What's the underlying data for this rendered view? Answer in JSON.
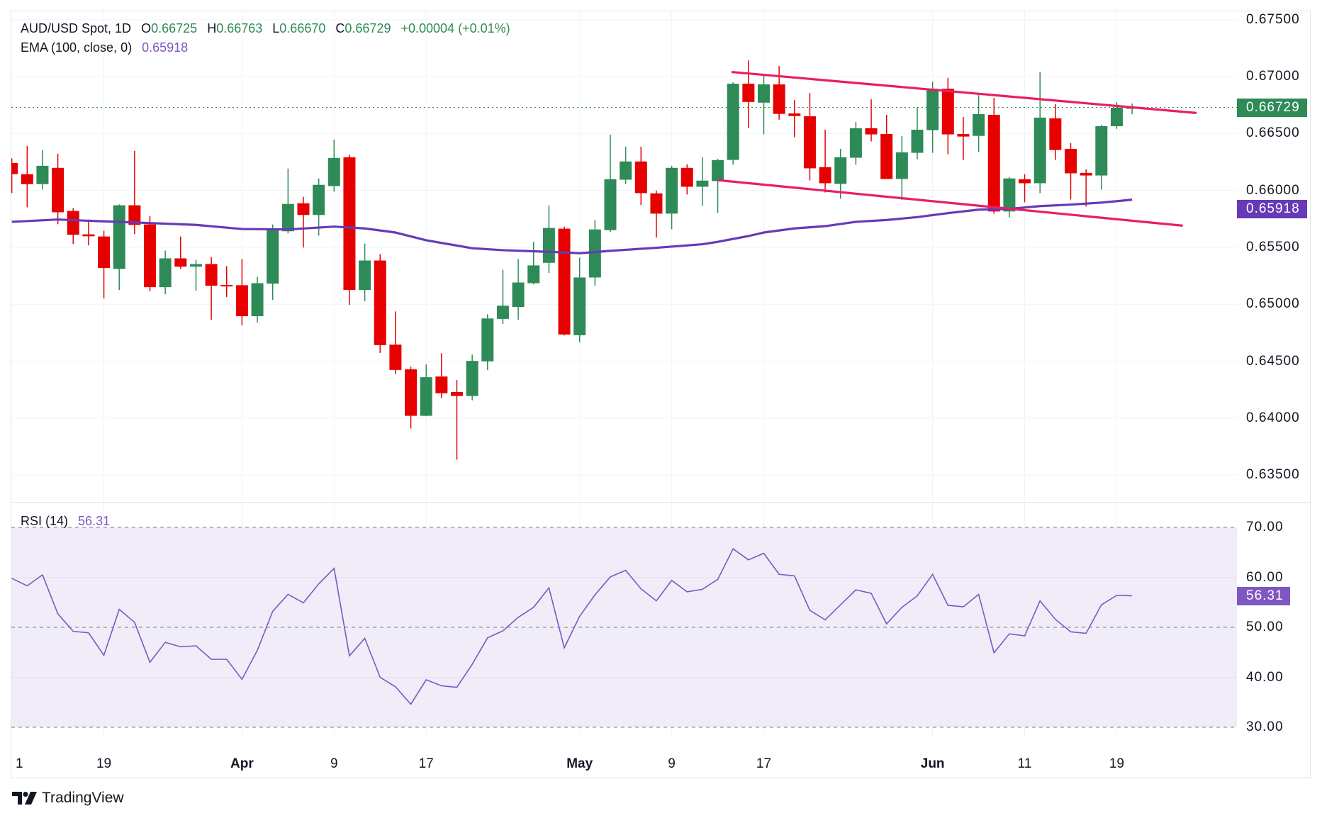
{
  "header": {
    "symbol": "AUD/USD Spot, 1D",
    "open_label": "O",
    "open": "0.66725",
    "high_label": "H",
    "high": "0.66763",
    "low_label": "L",
    "low": "0.66670",
    "close_label": "C",
    "close": "0.66729",
    "change": "+0.00004 (+0.01%)",
    "ema_label": "EMA (100, close, 0)",
    "ema_value": "0.65918"
  },
  "rsi_header": {
    "label": "RSI (14)",
    "value": "56.31"
  },
  "price_tag": "0.66729",
  "ema_tag": "0.65918",
  "rsi_tag": "56.31",
  "brand": "TradingView",
  "colors": {
    "up": "#2e8b57",
    "down": "#e60000",
    "ema": "#673ab7",
    "trend": "#e91e63",
    "rsi": "#7e57c2",
    "rsi_fill": "#f0ecf8",
    "grid": "#f0f3fa"
  },
  "chart_data": [
    {
      "type": "candlestick",
      "title": "AUD/USD Spot, 1D",
      "price_axis_labels": [
        "0.67500",
        "0.67000",
        "0.66500",
        "0.66000",
        "0.65500",
        "0.65000",
        "0.64500",
        "0.64000",
        "0.63500"
      ],
      "ylim": [
        0.6335,
        0.676
      ],
      "time_labels": [
        {
          "bar": 0,
          "label": "1",
          "bold": false
        },
        {
          "bar": 6,
          "label": "19",
          "bold": false
        },
        {
          "bar": 15,
          "label": "Apr",
          "bold": true
        },
        {
          "bar": 21,
          "label": "9",
          "bold": false
        },
        {
          "bar": 27,
          "label": "17",
          "bold": false
        },
        {
          "bar": 37,
          "label": "May",
          "bold": true
        },
        {
          "bar": 43,
          "label": "9",
          "bold": false
        },
        {
          "bar": 49,
          "label": "17",
          "bold": false
        },
        {
          "bar": 60,
          "label": "Jun",
          "bold": true
        },
        {
          "bar": 66,
          "label": "11",
          "bold": false
        },
        {
          "bar": 72,
          "label": "19",
          "bold": false
        }
      ],
      "ohlc": [
        [
          0.66241,
          0.66282,
          0.65976,
          0.66143
        ],
        [
          0.66142,
          0.6639,
          0.65852,
          0.66055
        ],
        [
          0.66055,
          0.66353,
          0.66007,
          0.66216
        ],
        [
          0.66198,
          0.66322,
          0.65703,
          0.65808
        ],
        [
          0.65819,
          0.65844,
          0.65529,
          0.6561
        ],
        [
          0.65614,
          0.65744,
          0.65517,
          0.65597
        ],
        [
          0.65595,
          0.65645,
          0.65051,
          0.65318
        ],
        [
          0.6531,
          0.65877,
          0.65125,
          0.65869
        ],
        [
          0.65869,
          0.66347,
          0.65616,
          0.65697
        ],
        [
          0.65701,
          0.65775,
          0.65113,
          0.6515
        ],
        [
          0.6515,
          0.65471,
          0.65088,
          0.65403
        ],
        [
          0.65403,
          0.65595,
          0.6531,
          0.6533
        ],
        [
          0.6533,
          0.6539,
          0.65119,
          0.65353
        ],
        [
          0.65353,
          0.65415,
          0.64864,
          0.65163
        ],
        [
          0.65169,
          0.65334,
          0.65063,
          0.65163
        ],
        [
          0.65167,
          0.65397,
          0.64815,
          0.64895
        ],
        [
          0.64895,
          0.65241,
          0.6484,
          0.65185
        ],
        [
          0.65181,
          0.65701,
          0.65038,
          0.65651
        ],
        [
          0.65641,
          0.66192,
          0.65622,
          0.65881
        ],
        [
          0.65887,
          0.65943,
          0.65498,
          0.65784
        ],
        [
          0.65784,
          0.66105,
          0.65603,
          0.66049
        ],
        [
          0.66038,
          0.66446,
          0.65989,
          0.66285
        ],
        [
          0.66291,
          0.66316,
          0.64995,
          0.65125
        ],
        [
          0.65125,
          0.65533,
          0.65026,
          0.65384
        ],
        [
          0.65384,
          0.6544,
          0.64572,
          0.64641
        ],
        [
          0.64645,
          0.64937,
          0.64386,
          0.64423
        ],
        [
          0.64428,
          0.64452,
          0.63908,
          0.6402
        ],
        [
          0.6402,
          0.64471,
          0.64016,
          0.64359
        ],
        [
          0.64365,
          0.6457,
          0.64175,
          0.64218
        ],
        [
          0.64229,
          0.64334,
          0.63635,
          0.64194
        ],
        [
          0.64194,
          0.64558,
          0.64156,
          0.64502
        ],
        [
          0.64498,
          0.64912,
          0.64423,
          0.64875
        ],
        [
          0.64871,
          0.65303,
          0.64827,
          0.64987
        ],
        [
          0.64976,
          0.65397,
          0.64864,
          0.65191
        ],
        [
          0.65185,
          0.65546,
          0.65175,
          0.65341
        ],
        [
          0.65364,
          0.65869,
          0.65274,
          0.6567
        ],
        [
          0.65664,
          0.65682,
          0.64726,
          0.64734
        ],
        [
          0.64728,
          0.65409,
          0.64666,
          0.65235
        ],
        [
          0.65235,
          0.65738,
          0.65163,
          0.65657
        ],
        [
          0.65651,
          0.6649,
          0.65635,
          0.66098
        ],
        [
          0.66094,
          0.66384,
          0.66057,
          0.66254
        ],
        [
          0.66254,
          0.66384,
          0.65871,
          0.65976
        ],
        [
          0.65974,
          0.65999,
          0.65585,
          0.65796
        ],
        [
          0.65796,
          0.66216,
          0.65659,
          0.66198
        ],
        [
          0.66198,
          0.66229,
          0.65964,
          0.66032
        ],
        [
          0.66032,
          0.66291,
          0.65864,
          0.66086
        ],
        [
          0.66082,
          0.66278,
          0.65802,
          0.66266
        ],
        [
          0.66268,
          0.66949,
          0.66225,
          0.66937
        ],
        [
          0.66937,
          0.67142,
          0.66548,
          0.66777
        ],
        [
          0.66771,
          0.67018,
          0.66492,
          0.66931
        ],
        [
          0.66931,
          0.67092,
          0.66622,
          0.66672
        ],
        [
          0.66676,
          0.66794,
          0.66467,
          0.66653
        ],
        [
          0.66651,
          0.66856,
          0.66088,
          0.66194
        ],
        [
          0.66204,
          0.66533,
          0.65982,
          0.66063
        ],
        [
          0.66057,
          0.66365,
          0.65927,
          0.66291
        ],
        [
          0.66287,
          0.66601,
          0.66225,
          0.66546
        ],
        [
          0.66546,
          0.668,
          0.6643,
          0.66492
        ],
        [
          0.66496,
          0.66664,
          0.661,
          0.661
        ],
        [
          0.661,
          0.66477,
          0.65914,
          0.66334
        ],
        [
          0.6633,
          0.66732,
          0.66272,
          0.66533
        ],
        [
          0.66529,
          0.66955,
          0.6633,
          0.66893
        ],
        [
          0.66893,
          0.66987,
          0.66318,
          0.66492
        ],
        [
          0.66496,
          0.66645,
          0.66268,
          0.66473
        ],
        [
          0.66479,
          0.66837,
          0.66336,
          0.6667
        ],
        [
          0.66664,
          0.66813,
          0.65796,
          0.65815
        ],
        [
          0.65815,
          0.66117,
          0.65765,
          0.66105
        ],
        [
          0.66098,
          0.66142,
          0.65895,
          0.66063
        ],
        [
          0.66063,
          0.67042,
          0.65976,
          0.66639
        ],
        [
          0.66633,
          0.66757,
          0.66268,
          0.66355
        ],
        [
          0.66365,
          0.66415,
          0.6592,
          0.6615
        ],
        [
          0.66154,
          0.66185,
          0.65858,
          0.66131
        ],
        [
          0.66131,
          0.66577,
          0.66007,
          0.66564
        ],
        [
          0.66564,
          0.66775,
          0.66541,
          0.66726
        ],
        [
          0.66725,
          0.66763,
          0.6667,
          0.66729
        ]
      ],
      "last_price": 0.66729,
      "ema_100": [
        [
          0,
          0.65724
        ],
        [
          3,
          0.65744
        ],
        [
          6,
          0.65728
        ],
        [
          9,
          0.65713
        ],
        [
          12,
          0.65697
        ],
        [
          15,
          0.65661
        ],
        [
          18,
          0.65657
        ],
        [
          21,
          0.65682
        ],
        [
          23,
          0.65666
        ],
        [
          25,
          0.6563
        ],
        [
          27,
          0.65562
        ],
        [
          30,
          0.65492
        ],
        [
          32,
          0.65475
        ],
        [
          36,
          0.65455
        ],
        [
          37,
          0.65448
        ],
        [
          39,
          0.65469
        ],
        [
          42,
          0.65496
        ],
        [
          45,
          0.65527
        ],
        [
          46,
          0.65548
        ],
        [
          48,
          0.65599
        ],
        [
          49,
          0.6563
        ],
        [
          51,
          0.65666
        ],
        [
          53,
          0.65686
        ],
        [
          55,
          0.65724
        ],
        [
          57,
          0.6574
        ],
        [
          59,
          0.65765
        ],
        [
          61,
          0.658
        ],
        [
          63,
          0.65831
        ],
        [
          65,
          0.65837
        ],
        [
          67,
          0.65862
        ],
        [
          69,
          0.65875
        ],
        [
          71,
          0.65893
        ],
        [
          73,
          0.65918
        ]
      ],
      "trendlines": [
        {
          "name": "upper-channel",
          "points": [
            [
              46.9,
              0.6704
            ],
            [
              77.2,
              0.6668
            ]
          ]
        },
        {
          "name": "lower-channel",
          "points": [
            [
              46.0,
              0.6609
            ],
            [
              76.3,
              0.6569
            ]
          ]
        }
      ]
    },
    {
      "type": "line",
      "title": "RSI (14)",
      "axis_labels": [
        "70.00",
        "60.00",
        "50.00",
        "40.00",
        "30.00"
      ],
      "ylim": [
        30,
        70
      ],
      "bands": {
        "upper": 70,
        "middle": 50,
        "lower": 30
      },
      "values": [
        59.8,
        58.3,
        60.5,
        52.7,
        49.2,
        48.9,
        44.4,
        53.6,
        51.0,
        43.0,
        47.0,
        46.1,
        46.3,
        43.6,
        43.6,
        39.6,
        45.4,
        53.2,
        56.6,
        54.9,
        58.7,
        61.8,
        44.3,
        47.8,
        40.0,
        38.1,
        34.6,
        39.5,
        38.3,
        38.0,
        42.6,
        47.9,
        49.3,
        52.0,
        54.0,
        57.9,
        45.9,
        52.2,
        56.5,
        60.1,
        61.4,
        57.7,
        55.3,
        59.4,
        57.1,
        57.6,
        59.6,
        65.7,
        63.5,
        64.8,
        60.6,
        60.3,
        53.4,
        51.5,
        54.5,
        57.5,
        56.8,
        50.7,
        54.0,
        56.3,
        60.6,
        54.4,
        54.1,
        56.6,
        44.9,
        48.7,
        48.3,
        55.3,
        51.6,
        49.1,
        48.8,
        54.5,
        56.4,
        56.31
      ]
    }
  ]
}
